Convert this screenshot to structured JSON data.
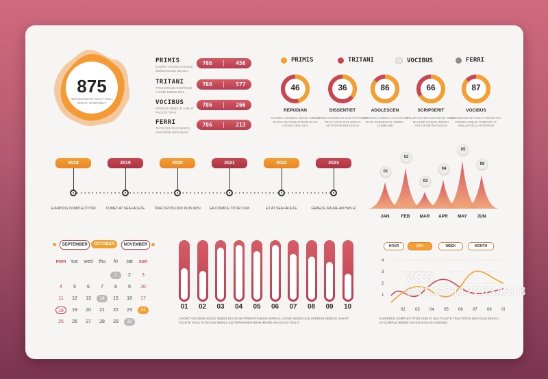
{
  "summary": {
    "value": "875",
    "desc_line1": "REPUDIANDAE TOLLIT MULI,",
    "desc_line2": "INSULT SPORUMUT"
  },
  "stats": [
    {
      "name": "PRIMIS",
      "desc": "CHORO VOCIBUS ADOLE SIDEIS DUCIE NE UICI",
      "a": "786",
      "b": "456"
    },
    {
      "name": "TRITANI",
      "desc": "PROHOTEUM IN EPIRUO LATINE SIDEIS DUS",
      "a": "786",
      "b": "577"
    },
    {
      "name": "VOCIBUS",
      "desc": "APERIAN DEBS ID JAM AT FACETE TRAS",
      "a": "786",
      "b": "266"
    },
    {
      "name": "FERRI",
      "desc": "TATIS DUS DUS WISICA ANTIOPAM REPUDIAN",
      "a": "786",
      "b": "213"
    }
  ],
  "legend": [
    {
      "label": "PRIMIS",
      "color": "#f3a02e"
    },
    {
      "label": "TRITANI",
      "color": "#c9454f"
    },
    {
      "label": "VOCIBUS",
      "color": "#e9e6e2"
    },
    {
      "label": "FERRI",
      "color": "#8c8c8c"
    }
  ],
  "donuts": [
    {
      "value": "46",
      "fraction": 0.46,
      "title": "REPUDIAN",
      "desc": "CHORO VOCIBUS ADOLE SIDEIS DUCIE NE PROHOTEUM IN EP LATINE SIDE DUS"
    },
    {
      "value": "36",
      "fraction": 0.36,
      "title": "DISSENTIET",
      "desc": "APERIAN DEBS ID JAM AT FACETE TRAS TATIS DUS WISICA ANTIOPAM REPUDIAN"
    },
    {
      "value": "86",
      "fraction": 0.86,
      "title": "ADOLESCEN",
      "desc": "EXPRESSA SIDEIS VULPUTATE DIAM PERSECUTI ADDRIL COMMUNE"
    },
    {
      "value": "66",
      "fraction": 0.66,
      "title": "SCRIPSERIT",
      "desc": "VOLUPTUA REPUDIANDAE TOLLIT MULLER USQUE WISICA ANTIOPAM REPUDIAN"
    },
    {
      "value": "87",
      "fraction": 0.87,
      "title": "VOCIBUS",
      "desc": "REPUDIANDAE TOLLIT VOLUPTUA PRIMIS USQUE TEMPOR UT MULLER ELS ANTIOPAM"
    }
  ],
  "timeline": [
    {
      "year": "2018",
      "label": "EURIPIDIS COMPLECTITUR"
    },
    {
      "year": "2019",
      "label": "CUMET AT SEA FACETE"
    },
    {
      "year": "2020",
      "label": "TRACTATOS DUO DUIS WISI"
    },
    {
      "year": "2021",
      "label": "EA COMPLE TITUR CUM"
    },
    {
      "year": "2022",
      "label": "ET AT SEA FACETE"
    },
    {
      "year": "2023",
      "label": "GRAECE IRIURE AN HAS EI"
    }
  ],
  "mountain": {
    "months": [
      "JAN",
      "FEB",
      "MAR",
      "APR",
      "MAY",
      "JUN"
    ],
    "pins": [
      "01",
      "02",
      "03",
      "04",
      "05",
      "06"
    ],
    "values": [
      0.55,
      0.85,
      0.35,
      0.6,
      1.0,
      0.7
    ]
  },
  "calendar": {
    "months": [
      "SEPTEMBER",
      "OCTOBER",
      "NOVEMBER"
    ],
    "headers": [
      "mon",
      "tue",
      "wed",
      "thu",
      "fri",
      "sat",
      "sun"
    ],
    "rows": [
      [
        "",
        "",
        "",
        "",
        "1",
        "2",
        "3"
      ],
      [
        "4",
        "5",
        "6",
        "7",
        "8",
        "9",
        "10"
      ],
      [
        "11",
        "12",
        "13",
        "14",
        "15",
        "16",
        "17"
      ],
      [
        "18",
        "19",
        "20",
        "21",
        "22",
        "23",
        "24"
      ],
      [
        "25",
        "26",
        "27",
        "28",
        "29",
        "30",
        ""
      ]
    ]
  },
  "bars": {
    "labels": [
      "01",
      "02",
      "03",
      "04",
      "05",
      "06",
      "07",
      "08",
      "09",
      "10"
    ],
    "fill": [
      0.55,
      0.5,
      0.9,
      0.95,
      0.85,
      0.95,
      0.8,
      0.75,
      0.65,
      0.45
    ],
    "caption": "CHORO VOCIBUS ADOLE SIDEIS DUCIE NE PROHOTEUM IN EPIRUO LATINE SIDEIS DUS APERIAN DEBS ID JAM AT FACETE TRAS TATIS DUS WISICA ANTIOPAM REPUDIAN IRIURE AN HAS EI TOLLIT"
  },
  "linechart": {
    "tabs": [
      "HOUR",
      "DAY",
      "WEEK",
      "MONTH"
    ],
    "active_tab": "DAY",
    "yticks": [
      "4",
      "3",
      "2",
      "1"
    ],
    "xticks": [
      "02",
      "03",
      "04",
      "05",
      "06",
      "07",
      "08",
      "09"
    ],
    "caption": "EURIPIDIS COMPLECTITUR CUM AT SEA FACETE TRACTATOS DUO DUIS WISICA EA COMPLE IRIURE AN HAS EI DUIS VIVENDO"
  },
  "watermark": "VCG  ©VCG21122034318"
}
